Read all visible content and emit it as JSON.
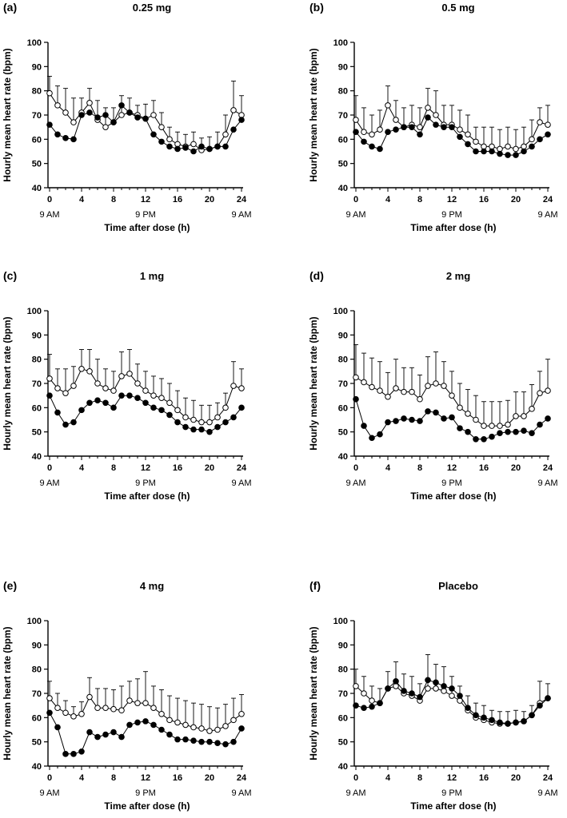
{
  "figure": {
    "ylabel": "Hourly mean heart rate (bpm)",
    "xlabel": "Time after dose (h)",
    "clock_labels": [
      {
        "hour": 0,
        "label": "9 AM"
      },
      {
        "hour": 12,
        "label": "9 PM"
      },
      {
        "hour": 24,
        "label": "9 AM"
      }
    ]
  },
  "chart_data": [
    {
      "type": "line",
      "panel": "(a)",
      "title": "0.25 mg",
      "xlabel": "Time after dose (h)",
      "ylabel": "Hourly mean heart rate (bpm)",
      "xlim": [
        0,
        24
      ],
      "ylim": [
        40,
        100
      ],
      "xticks": [
        0,
        4,
        8,
        12,
        16,
        20,
        24
      ],
      "yticks": [
        40,
        50,
        60,
        70,
        80,
        90,
        100
      ],
      "x": [
        0,
        1,
        2,
        3,
        4,
        5,
        6,
        7,
        8,
        9,
        10,
        11,
        12,
        13,
        14,
        15,
        16,
        17,
        18,
        19,
        20,
        21,
        22,
        23,
        24
      ],
      "series": [
        {
          "name": "filled",
          "marker": "filled",
          "values": [
            66,
            62,
            60.5,
            60,
            70,
            71,
            69,
            70,
            67,
            74,
            71,
            69,
            68.5,
            62,
            59,
            57,
            56,
            56.5,
            55,
            57,
            56,
            57,
            57,
            64,
            68
          ],
          "error": [
            0,
            0,
            0,
            0,
            0,
            0,
            0,
            0,
            0,
            0,
            0,
            0,
            0,
            0,
            0,
            0,
            0,
            0,
            0,
            0,
            0,
            0,
            0,
            0,
            0
          ]
        },
        {
          "name": "open",
          "marker": "open",
          "values": [
            79,
            74,
            71,
            67,
            71,
            75,
            68,
            65,
            67,
            70,
            71,
            70,
            68.5,
            70,
            65,
            60,
            58,
            57,
            58,
            55.5,
            56,
            57,
            62,
            72,
            70
          ],
          "error": [
            7,
            8,
            10,
            10,
            6,
            6,
            8,
            8,
            6,
            8,
            6,
            4,
            6,
            6,
            6,
            5,
            5,
            5,
            5,
            5,
            5,
            6,
            8,
            12,
            8
          ]
        }
      ]
    },
    {
      "type": "line",
      "panel": "(b)",
      "title": "0.5 mg",
      "xlabel": "Time after dose (h)",
      "ylabel": "Hourly mean heart rate (bpm)",
      "xlim": [
        0,
        24
      ],
      "ylim": [
        40,
        100
      ],
      "xticks": [
        0,
        4,
        8,
        12,
        16,
        20,
        24
      ],
      "yticks": [
        40,
        50,
        60,
        70,
        80,
        90,
        100
      ],
      "x": [
        0,
        1,
        2,
        3,
        4,
        5,
        6,
        7,
        8,
        9,
        10,
        11,
        12,
        13,
        14,
        15,
        16,
        17,
        18,
        19,
        20,
        21,
        22,
        23,
        24
      ],
      "series": [
        {
          "name": "filled",
          "marker": "filled",
          "values": [
            63,
            59,
            57,
            56,
            63,
            64,
            65,
            65,
            62,
            69,
            66,
            65,
            65,
            61,
            58,
            55,
            55,
            55,
            54,
            53.5,
            53.5,
            55,
            57,
            60,
            62
          ],
          "error": [
            0,
            0,
            0,
            0,
            0,
            0,
            0,
            0,
            0,
            0,
            0,
            0,
            0,
            0,
            0,
            0,
            0,
            0,
            0,
            0,
            0,
            0,
            0,
            0,
            0
          ]
        },
        {
          "name": "open",
          "marker": "open",
          "values": [
            68,
            63,
            62,
            64,
            74,
            68,
            65,
            66,
            65,
            73,
            70,
            66,
            66,
            64,
            62,
            59,
            57,
            57,
            56,
            57,
            56,
            57,
            60,
            67,
            66
          ],
          "error": [
            10,
            10,
            8,
            8,
            8,
            8,
            8,
            8,
            8,
            8,
            10,
            8,
            8,
            8,
            8,
            6,
            8,
            8,
            8,
            8,
            8,
            8,
            8,
            6,
            8
          ]
        }
      ]
    },
    {
      "type": "line",
      "panel": "(c)",
      "title": "1 mg",
      "xlabel": "Time after dose (h)",
      "ylabel": "Hourly mean heart rate (bpm)",
      "xlim": [
        0,
        24
      ],
      "ylim": [
        40,
        100
      ],
      "xticks": [
        0,
        4,
        8,
        12,
        16,
        20,
        24
      ],
      "yticks": [
        40,
        50,
        60,
        70,
        80,
        90,
        100
      ],
      "x": [
        0,
        1,
        2,
        3,
        4,
        5,
        6,
        7,
        8,
        9,
        10,
        11,
        12,
        13,
        14,
        15,
        16,
        17,
        18,
        19,
        20,
        21,
        22,
        23,
        24
      ],
      "series": [
        {
          "name": "filled",
          "marker": "filled",
          "values": [
            65,
            58,
            53,
            54,
            59,
            62,
            63,
            62,
            60,
            65,
            65,
            64,
            62,
            60,
            59,
            57,
            54,
            52,
            51,
            51,
            50,
            52,
            54,
            56,
            60
          ],
          "error": [
            0,
            0,
            0,
            0,
            0,
            0,
            0,
            0,
            0,
            0,
            0,
            0,
            0,
            0,
            0,
            0,
            0,
            0,
            0,
            0,
            0,
            0,
            0,
            0,
            0
          ]
        },
        {
          "name": "open",
          "marker": "open",
          "values": [
            72,
            68,
            66,
            69,
            76,
            75,
            70,
            68,
            67,
            73,
            74,
            70,
            67,
            65,
            64,
            62,
            59,
            56,
            55,
            54,
            54,
            56,
            60,
            69,
            68
          ],
          "error": [
            10,
            8,
            10,
            8,
            8,
            9,
            10,
            8,
            8,
            10,
            10,
            8,
            8,
            8,
            8,
            8,
            8,
            8,
            8,
            7,
            7,
            6,
            6,
            10,
            8
          ]
        }
      ]
    },
    {
      "type": "line",
      "panel": "(d)",
      "title": "2 mg",
      "xlabel": "Time after dose (h)",
      "ylabel": "Hourly mean heart rate (bpm)",
      "xlim": [
        0,
        24
      ],
      "ylim": [
        40,
        100
      ],
      "xticks": [
        0,
        4,
        8,
        12,
        16,
        20,
        24
      ],
      "yticks": [
        40,
        50,
        60,
        70,
        80,
        90,
        100
      ],
      "x": [
        0,
        1,
        2,
        3,
        4,
        5,
        6,
        7,
        8,
        9,
        10,
        11,
        12,
        13,
        14,
        15,
        16,
        17,
        18,
        19,
        20,
        21,
        22,
        23,
        24
      ],
      "series": [
        {
          "name": "filled",
          "marker": "filled",
          "values": [
            63.5,
            52.5,
            47.5,
            49,
            54,
            54.5,
            55.5,
            55,
            54.5,
            58.5,
            58,
            55.5,
            56,
            51.5,
            50,
            47,
            47,
            48,
            49.5,
            50,
            50,
            50.5,
            49.5,
            53,
            55.5
          ],
          "error": [
            0,
            0,
            0,
            0,
            0,
            0,
            0,
            0,
            0,
            0,
            0,
            0,
            0,
            0,
            0,
            0,
            0,
            0,
            0,
            0,
            0,
            0,
            0,
            0,
            0
          ]
        },
        {
          "name": "open",
          "marker": "open",
          "values": [
            72.5,
            70.5,
            68.5,
            67,
            64.5,
            68,
            66.5,
            66.5,
            63.5,
            69,
            70,
            69,
            65,
            60,
            57.5,
            55,
            52.5,
            52.5,
            52.5,
            53,
            56.5,
            56.5,
            59.5,
            66,
            67
          ],
          "error": [
            13.5,
            12,
            12,
            12,
            10,
            12,
            10,
            10,
            10,
            12,
            13,
            10,
            10,
            10,
            10,
            10,
            10,
            10,
            10,
            10,
            10,
            10,
            10,
            9,
            13
          ]
        }
      ]
    },
    {
      "type": "line",
      "panel": "(e)",
      "title": "4 mg",
      "xlabel": "Time after dose (h)",
      "ylabel": "Hourly mean heart rate (bpm)",
      "xlim": [
        0,
        24
      ],
      "ylim": [
        40,
        100
      ],
      "xticks": [
        0,
        4,
        8,
        12,
        16,
        20,
        24
      ],
      "yticks": [
        40,
        50,
        60,
        70,
        80,
        90,
        100
      ],
      "x": [
        0,
        1,
        2,
        3,
        4,
        5,
        6,
        7,
        8,
        9,
        10,
        11,
        12,
        13,
        14,
        15,
        16,
        17,
        18,
        19,
        20,
        21,
        22,
        23,
        24
      ],
      "series": [
        {
          "name": "filled",
          "marker": "filled",
          "values": [
            62,
            56,
            45,
            45,
            46,
            54,
            52,
            53,
            54,
            52,
            57,
            58,
            58.5,
            57,
            55,
            53,
            51,
            51,
            50.5,
            50,
            50,
            49.5,
            49,
            50,
            55.5
          ],
          "error": [
            0,
            0,
            0,
            0,
            0,
            0,
            0,
            0,
            0,
            0,
            0,
            0,
            0,
            0,
            0,
            0,
            0,
            0,
            0,
            0,
            0,
            0,
            0,
            0,
            0
          ]
        },
        {
          "name": "open",
          "marker": "open",
          "values": [
            68,
            64,
            62,
            60.5,
            61.5,
            68.5,
            64,
            64,
            63.5,
            63,
            67,
            66,
            66,
            64,
            61.5,
            59,
            58,
            57,
            56,
            55.5,
            54.5,
            55,
            56.5,
            59,
            61.5
          ],
          "error": [
            7,
            6,
            5,
            4,
            5,
            8,
            8,
            8,
            8,
            10,
            8,
            10,
            13,
            9,
            10,
            10,
            10,
            10,
            10,
            10,
            10,
            9,
            9,
            9,
            8
          ]
        }
      ]
    },
    {
      "type": "line",
      "panel": "(f)",
      "title": "Placebo",
      "xlabel": "Time after dose (h)",
      "ylabel": "Hourly mean heart rate (bpm)",
      "xlim": [
        0,
        24
      ],
      "ylim": [
        40,
        100
      ],
      "xticks": [
        0,
        4,
        8,
        12,
        16,
        20,
        24
      ],
      "yticks": [
        40,
        50,
        60,
        70,
        80,
        90,
        100
      ],
      "x": [
        0,
        1,
        2,
        3,
        4,
        5,
        6,
        7,
        8,
        9,
        10,
        11,
        12,
        13,
        14,
        15,
        16,
        17,
        18,
        19,
        20,
        21,
        22,
        23,
        24
      ],
      "series": [
        {
          "name": "filled",
          "marker": "filled",
          "values": [
            65,
            64,
            64.5,
            66,
            72,
            75,
            71,
            70,
            68.5,
            75.5,
            74.5,
            73,
            72,
            69,
            64,
            61,
            60,
            59,
            58,
            57.5,
            58,
            58.5,
            61,
            65,
            68
          ],
          "error": [
            0,
            0,
            0,
            0,
            0,
            0,
            0,
            0,
            0,
            0,
            0,
            0,
            0,
            0,
            0,
            0,
            0,
            0,
            0,
            0,
            0,
            0,
            0,
            0,
            0
          ]
        },
        {
          "name": "open",
          "marker": "open",
          "values": [
            73,
            70,
            67,
            66,
            72,
            73,
            70,
            69,
            67,
            72,
            72,
            71,
            69,
            67,
            63,
            60,
            59,
            58,
            57.5,
            57.5,
            58,
            58.5,
            61,
            66,
            68
          ],
          "error": [
            7,
            7,
            6,
            6,
            7,
            10,
            8,
            8,
            7,
            14,
            10,
            10,
            8,
            6,
            6,
            6,
            6,
            5,
            5,
            5,
            5,
            4,
            4,
            9,
            6
          ]
        }
      ]
    }
  ]
}
